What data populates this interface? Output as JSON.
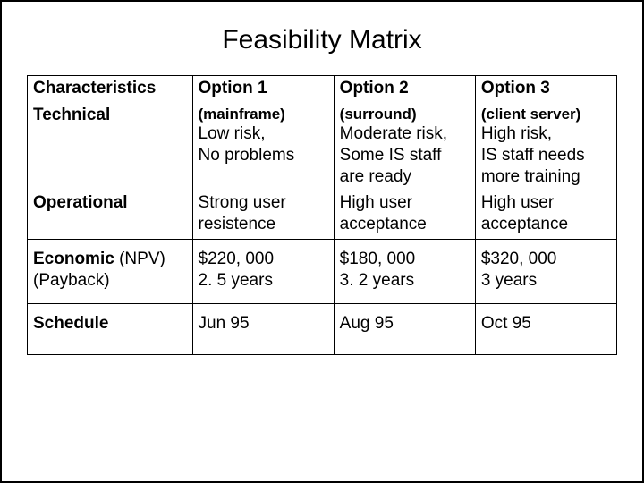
{
  "title": "Feasibility Matrix",
  "table": {
    "type": "table",
    "border_color": "#000000",
    "background_color": "#ffffff",
    "text_color": "#000000",
    "header_fontsize": 19,
    "sub_fontsize": 17,
    "body_fontsize": 19,
    "columns": [
      "Characteristics",
      "Option 1",
      "Option 2",
      "Option 3"
    ],
    "subheaders": [
      "",
      "(mainframe)",
      "(surround)",
      "(client server)"
    ],
    "rows": [
      {
        "label": "Technical",
        "cells": [
          "Low risk,\nNo problems",
          "Moderate risk,\nSome IS staff are ready",
          "High risk,\nIS staff needs more training"
        ]
      },
      {
        "label": "Operational",
        "cells": [
          "Strong user resistence",
          "High user acceptance",
          "High user acceptance"
        ]
      },
      {
        "label_bold": "Economic",
        "label_rest": " (NPV)\n(Payback)",
        "cells": [
          "$220, 000\n2. 5 years",
          "$180, 000\n3. 2 years",
          "$320, 000\n3 years"
        ]
      },
      {
        "label": "Schedule",
        "cells": [
          "Jun 95",
          "Aug 95",
          "Oct 95"
        ]
      }
    ]
  }
}
